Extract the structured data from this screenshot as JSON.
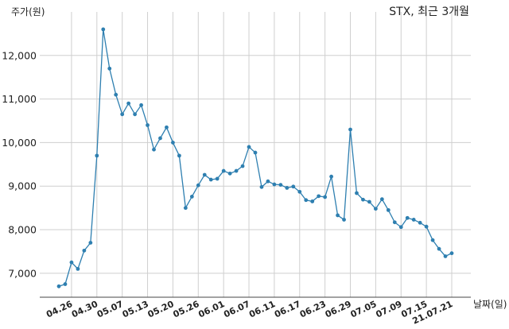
{
  "chart_data": {
    "type": "line",
    "title": "STX, 최근 3개월",
    "ylabel": "주가(원)",
    "xlabel": "날짜(일)",
    "ylim": [
      6450,
      13000
    ],
    "yticks": [
      7000,
      8000,
      9000,
      10000,
      11000,
      12000
    ],
    "ytick_labels": [
      "7,000",
      "8,000",
      "9,000",
      "10,000",
      "11,000",
      "12,000"
    ],
    "x": [
      "04.22",
      "04.23",
      "04.26",
      "04.27",
      "04.28",
      "04.29",
      "04.30",
      "05.03",
      "05.04",
      "05.06",
      "05.07",
      "05.10",
      "05.11",
      "05.12",
      "05.13",
      "05.14",
      "05.17",
      "05.18",
      "05.20",
      "05.21",
      "05.24",
      "05.25",
      "05.26",
      "05.27",
      "05.28",
      "05.31",
      "06.01",
      "06.02",
      "06.03",
      "06.04",
      "06.07",
      "06.08",
      "06.09",
      "06.10",
      "06.11",
      "06.14",
      "06.15",
      "06.16",
      "06.17",
      "06.18",
      "06.21",
      "06.22",
      "06.23",
      "06.24",
      "06.25",
      "06.28",
      "06.29",
      "06.30",
      "07.01",
      "07.02",
      "07.05",
      "07.06",
      "07.07",
      "07.08",
      "07.09",
      "07.12",
      "07.13",
      "07.14",
      "07.15",
      "07.16",
      "07.19",
      "07.20",
      "07.21"
    ],
    "x_ticks": [
      "04.26",
      "04.30",
      "05.07",
      "05.13",
      "05.20",
      "05.26",
      "06.01",
      "06.07",
      "06.11",
      "06.17",
      "06.23",
      "06.29",
      "07.05",
      "07.09",
      "07.15",
      "21.07.21"
    ],
    "series": [
      {
        "color": "#2e7fb0",
        "values": [
          6700,
          6750,
          7250,
          7100,
          7520,
          7700,
          9700,
          12600,
          11700,
          11100,
          10650,
          10900,
          10650,
          10860,
          10400,
          9840,
          10100,
          10350,
          10000,
          9700,
          8500,
          8760,
          9020,
          9260,
          9150,
          9170,
          9350,
          9290,
          9350,
          9460,
          9900,
          9770,
          8980,
          9110,
          9040,
          9030,
          8960,
          8990,
          8870,
          8680,
          8650,
          8770,
          8750,
          9220,
          8330,
          8230,
          10300,
          8840,
          8690,
          8640,
          8480,
          8700,
          8450,
          8170,
          8060,
          8270,
          8230,
          8160,
          8070,
          7760,
          7560,
          7390,
          7460
        ]
      }
    ],
    "grid": true
  }
}
